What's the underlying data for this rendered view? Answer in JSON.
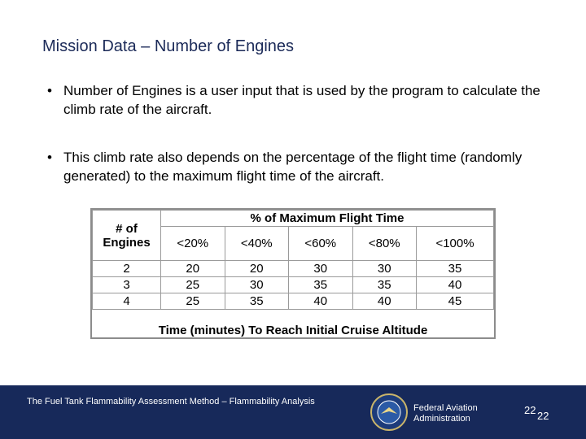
{
  "title": "Mission Data – Number of Engines",
  "bullets": [
    "Number of Engines is a user input that is used by the program to calculate the climb rate of the aircraft.",
    "This climb rate also depends on the percentage of the flight time (randomly generated) to the maximum flight time of the aircraft."
  ],
  "table": {
    "row_header": "# of Engines",
    "group_header": "% of Maximum Flight Time",
    "columns": [
      "<20%",
      "<40%",
      "<60%",
      "<80%",
      "<100%"
    ],
    "rows": [
      [
        "2",
        "20",
        "20",
        "30",
        "30",
        "35"
      ],
      [
        "3",
        "25",
        "30",
        "35",
        "35",
        "40"
      ],
      [
        "4",
        "25",
        "35",
        "40",
        "40",
        "45"
      ]
    ],
    "caption": "Time (minutes) To Reach Initial Cruise Altitude"
  },
  "footer": {
    "text": "The Fuel Tank Flammability Assessment Method – Flammability Analysis",
    "agency": [
      "Federal Aviation",
      "Administration"
    ],
    "page_numbers": [
      "22",
      "22"
    ]
  }
}
